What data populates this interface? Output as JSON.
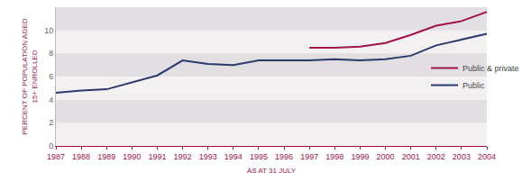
{
  "chart_data": {
    "type": "line",
    "x_label": "AS AT 31 JULY",
    "y_label": "PERCENT OF POPULATION AGED 15+ ENROLLED",
    "x": [
      1987,
      1988,
      1989,
      1990,
      1991,
      1992,
      1993,
      1994,
      1995,
      1996,
      1997,
      1998,
      1999,
      2000,
      2001,
      2002,
      2003,
      2004
    ],
    "series": [
      {
        "name": "Public & private",
        "color": "#a0134a",
        "values": [
          null,
          null,
          null,
          null,
          null,
          null,
          null,
          null,
          null,
          null,
          8.5,
          8.5,
          8.6,
          8.9,
          9.6,
          10.4,
          10.8,
          11.6
        ]
      },
      {
        "name": "Public",
        "color": "#2c3a6b",
        "values": [
          4.6,
          4.8,
          4.9,
          5.5,
          6.1,
          7.4,
          7.1,
          7.0,
          7.4,
          7.4,
          7.4,
          7.5,
          7.4,
          7.5,
          7.8,
          8.7,
          9.2,
          9.7
        ]
      }
    ],
    "xlim": [
      1987,
      2004
    ],
    "xticks": [
      1987,
      1988,
      1989,
      1990,
      1991,
      1992,
      1993,
      1994,
      1995,
      1996,
      1997,
      1998,
      1999,
      2000,
      2001,
      2002,
      2003,
      2004
    ],
    "ylim": [
      0,
      12
    ],
    "yticks": [
      0,
      2,
      4,
      6,
      8,
      10
    ],
    "grid": true,
    "legend": "right"
  }
}
